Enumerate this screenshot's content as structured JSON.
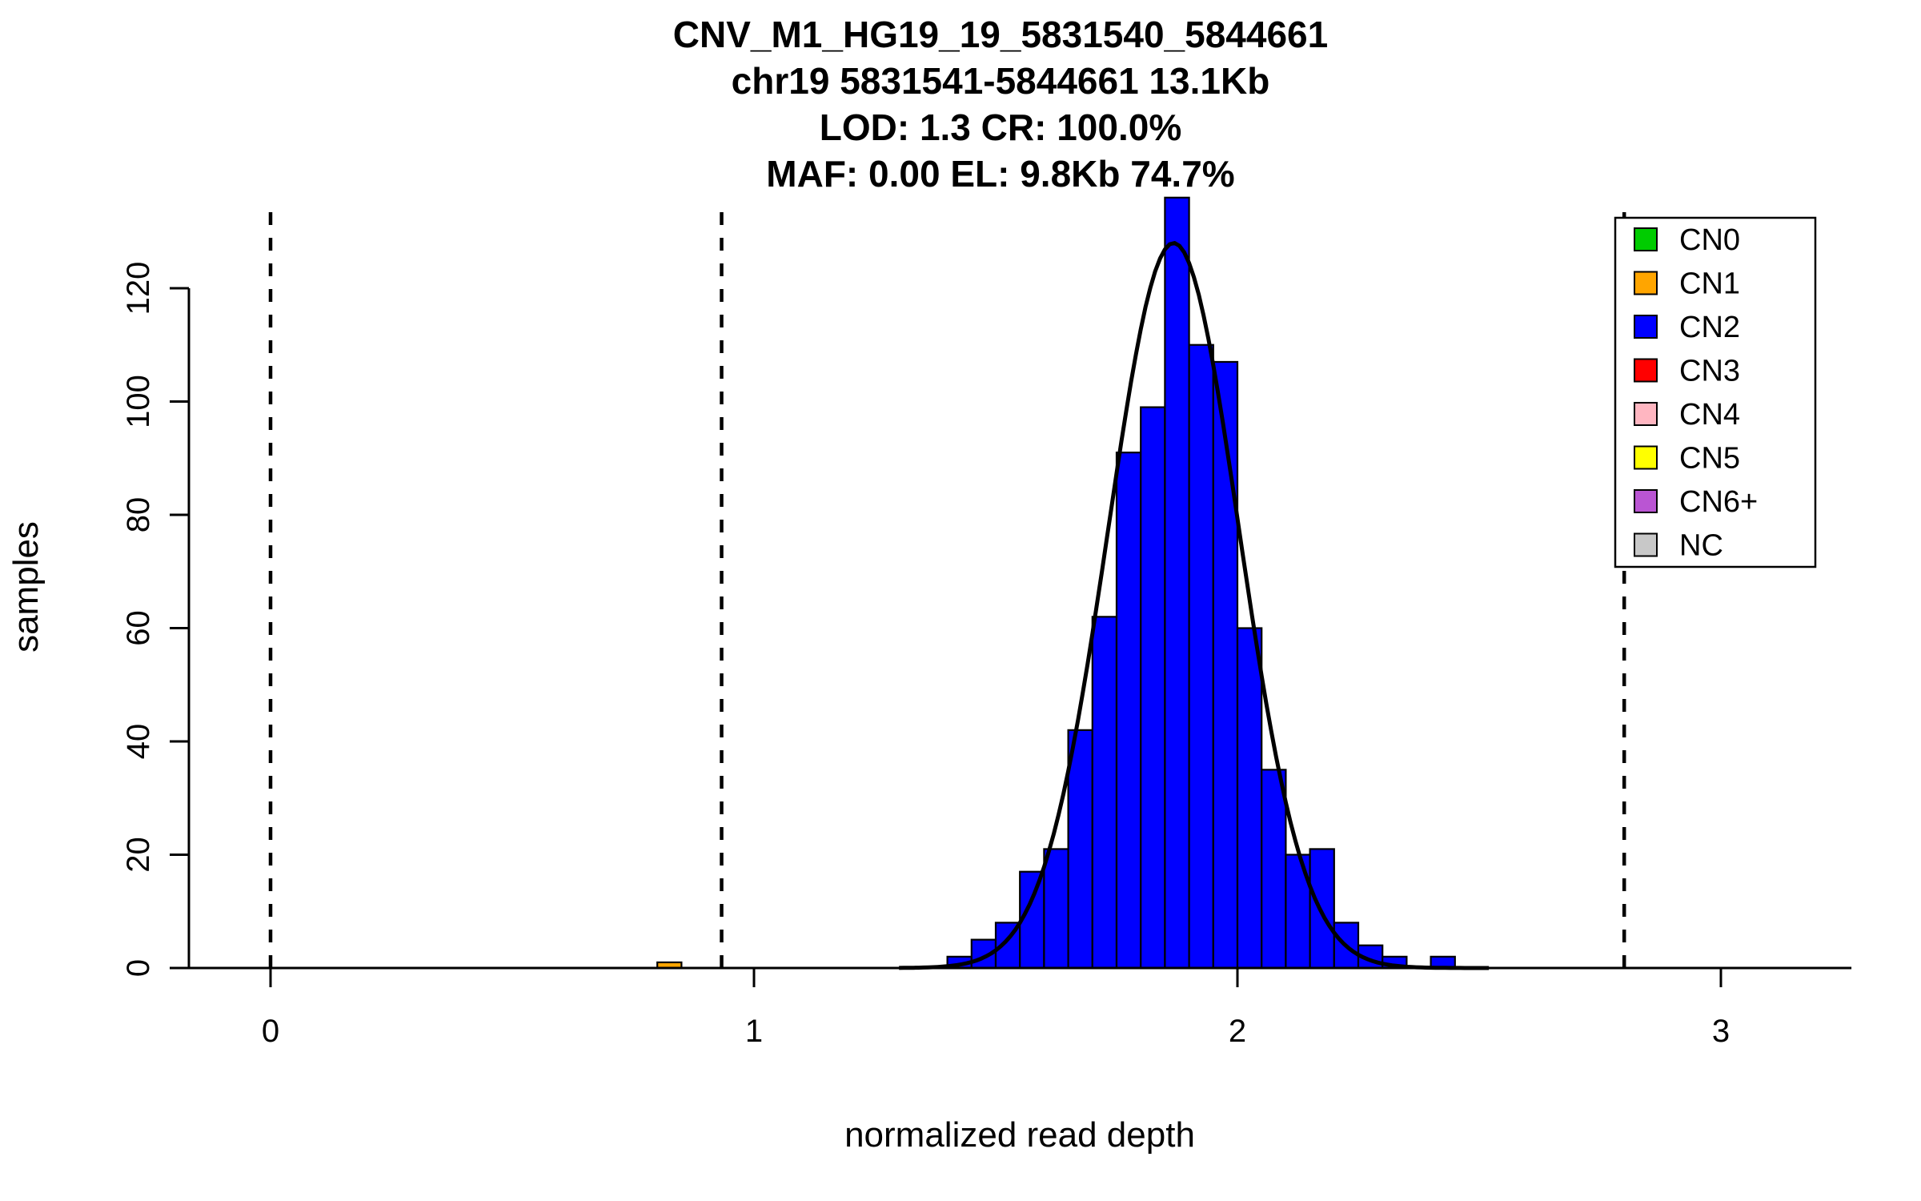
{
  "title": {
    "line1": "CNV_M1_HG19_19_5831540_5844661",
    "line2": "chr19 5831541-5844661 13.1Kb",
    "line3": "LOD: 1.3 CR: 100.0%",
    "line4": "MAF: 0.00 EL: 9.8Kb 74.7%"
  },
  "axes": {
    "x": {
      "label": "normalized read depth"
    },
    "y": {
      "label": "samples"
    }
  },
  "legend": {
    "items": [
      {
        "label": "CN0",
        "color": "#00CC00"
      },
      {
        "label": "CN1",
        "color": "#FFA500"
      },
      {
        "label": "CN2",
        "color": "#0000FF"
      },
      {
        "label": "CN3",
        "color": "#FF0000"
      },
      {
        "label": "CN4",
        "color": "#FFB6C1"
      },
      {
        "label": "CN5",
        "color": "#FFFF00"
      },
      {
        "label": "CN6+",
        "color": "#BA55D3"
      },
      {
        "label": "NC",
        "color": "#C8C8C8"
      }
    ]
  },
  "chart_data": {
    "type": "bar",
    "subtype": "histogram-with-gaussian-fit",
    "title": "CNV_M1_HG19_19_5831540_5844661 / chr19 5831541-5844661 13.1Kb / LOD: 1.3 CR: 100.0% / MAF: 0.00 EL: 9.8Kb 74.7%",
    "xlabel": "normalized read depth",
    "ylabel": "samples",
    "xlim": [
      -0.17,
      3.27
    ],
    "ylim": [
      0,
      136
    ],
    "x_ticks": [
      0,
      1,
      2,
      3
    ],
    "y_ticks": [
      0,
      20,
      40,
      60,
      80,
      100,
      120
    ],
    "histogram_bin_width": 0.05,
    "bars": [
      {
        "x": 0.8,
        "count": 1,
        "copy_number": "CN1"
      },
      {
        "x": 1.4,
        "count": 2,
        "copy_number": "CN2"
      },
      {
        "x": 1.45,
        "count": 5,
        "copy_number": "CN2"
      },
      {
        "x": 1.5,
        "count": 8,
        "copy_number": "CN2"
      },
      {
        "x": 1.55,
        "count": 17,
        "copy_number": "CN2"
      },
      {
        "x": 1.6,
        "count": 21,
        "copy_number": "CN2"
      },
      {
        "x": 1.65,
        "count": 42,
        "copy_number": "CN2"
      },
      {
        "x": 1.7,
        "count": 62,
        "copy_number": "CN2"
      },
      {
        "x": 1.75,
        "count": 91,
        "copy_number": "CN2"
      },
      {
        "x": 1.8,
        "count": 99,
        "copy_number": "CN2"
      },
      {
        "x": 1.85,
        "count": 136,
        "copy_number": "CN2"
      },
      {
        "x": 1.9,
        "count": 110,
        "copy_number": "CN2"
      },
      {
        "x": 1.95,
        "count": 107,
        "copy_number": "CN2"
      },
      {
        "x": 2.0,
        "count": 60,
        "copy_number": "CN2"
      },
      {
        "x": 2.05,
        "count": 35,
        "copy_number": "CN2"
      },
      {
        "x": 2.1,
        "count": 20,
        "copy_number": "CN2"
      },
      {
        "x": 2.15,
        "count": 21,
        "copy_number": "CN2"
      },
      {
        "x": 2.2,
        "count": 8,
        "copy_number": "CN2"
      },
      {
        "x": 2.25,
        "count": 4,
        "copy_number": "CN2"
      },
      {
        "x": 2.3,
        "count": 2,
        "copy_number": "CN2"
      },
      {
        "x": 2.4,
        "count": 2,
        "copy_number": "CN2"
      }
    ],
    "fit_curve": {
      "shape": "gaussian",
      "mean": 1.868,
      "sd": 0.135,
      "peak": 128,
      "color": "#000000"
    },
    "cluster_mean_lines_x": [
      0,
      0.933,
      1.868,
      2.8
    ],
    "grid": false,
    "legend_position": "top-right"
  }
}
